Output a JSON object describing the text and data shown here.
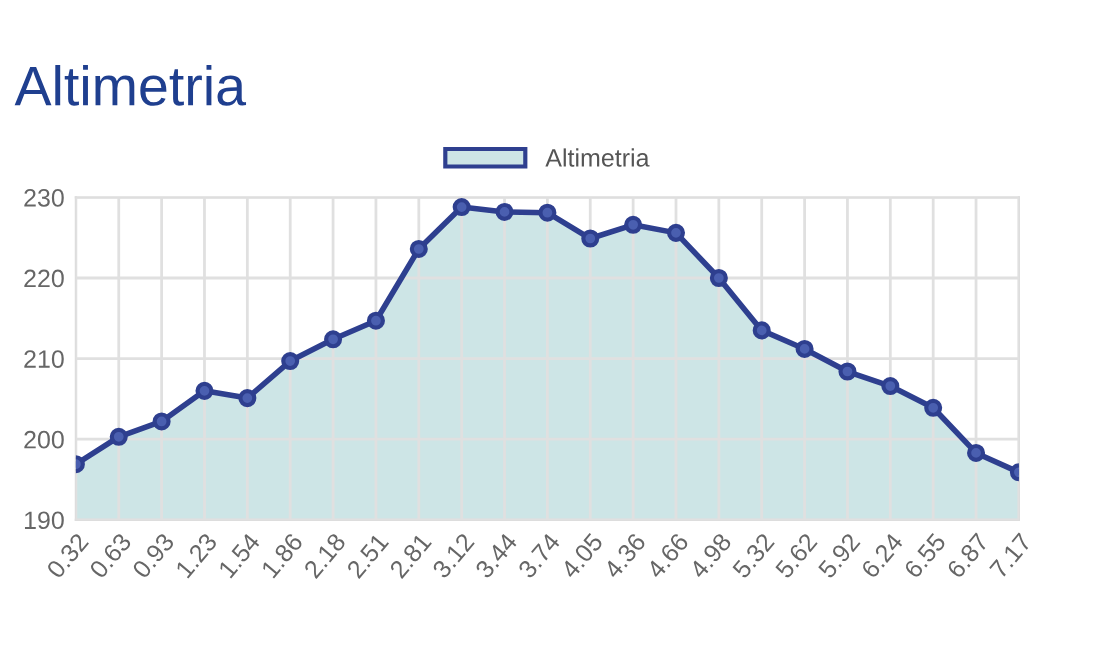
{
  "chart_data": {
    "type": "area",
    "title": "Altimetria",
    "categories": [
      "0.32",
      "0.63",
      "0.93",
      "1.23",
      "1.54",
      "1.86",
      "2.18",
      "2.51",
      "2.81",
      "3.12",
      "3.44",
      "3.74",
      "4.05",
      "4.36",
      "4.66",
      "4.98",
      "5.32",
      "5.62",
      "5.92",
      "6.24",
      "6.55",
      "6.87",
      "7.17"
    ],
    "series": [
      {
        "name": "Altimetria",
        "color": "#2e3f8f",
        "values": [
          196.9,
          200.3,
          202.2,
          206.0,
          205.1,
          209.7,
          212.4,
          214.7,
          223.6,
          228.8,
          228.2,
          228.1,
          224.9,
          226.6,
          225.6,
          220.0,
          213.5,
          211.2,
          208.4,
          206.6,
          203.9,
          198.3,
          195.9
        ]
      }
    ],
    "ylim": [
      190,
      230
    ],
    "yticks": [
      190,
      200,
      210,
      220,
      230
    ],
    "grid": true,
    "legend": "top",
    "marker": "circle",
    "line_style": "solid"
  }
}
